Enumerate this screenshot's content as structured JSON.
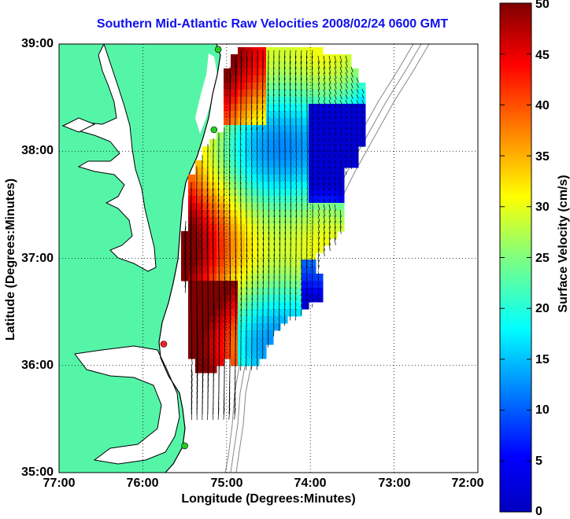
{
  "title": "Southern Mid-Atlantic Raw Velocities 2008/02/24 0600 GMT",
  "x_axis": {
    "label": "Longitude (Degrees:Minutes)",
    "ticks": [
      "77:00",
      "76:00",
      "75:00",
      "74:00",
      "73:00",
      "72:00"
    ]
  },
  "y_axis": {
    "label": "Latitude (Degrees:Minutes)",
    "ticks": [
      "39:00",
      "38:00",
      "37:00",
      "36:00",
      "35:00"
    ]
  },
  "colorbar": {
    "label": "Surface Velocity (cm/s)",
    "ticks": [
      "50",
      "45",
      "40",
      "35",
      "30",
      "25",
      "20",
      "15",
      "10",
      "5",
      "0"
    ],
    "min": 0,
    "max": 50
  },
  "map": {
    "lon_range": [
      -77,
      -72
    ],
    "lat_range": [
      35,
      39
    ],
    "land_color": "#55f5a8",
    "coast_color": "#000000",
    "bathymetry_color": "#888888",
    "grid": "dotted",
    "stations": [
      {
        "lon": -75.1,
        "lat": 38.95,
        "color": "#22cc22"
      },
      {
        "lon": -75.15,
        "lat": 38.2,
        "color": "#22cc22"
      },
      {
        "lon": -75.75,
        "lat": 36.2,
        "color": "#ee2222"
      },
      {
        "lon": -75.5,
        "lat": 35.25,
        "color": "#22cc22"
      }
    ]
  }
}
